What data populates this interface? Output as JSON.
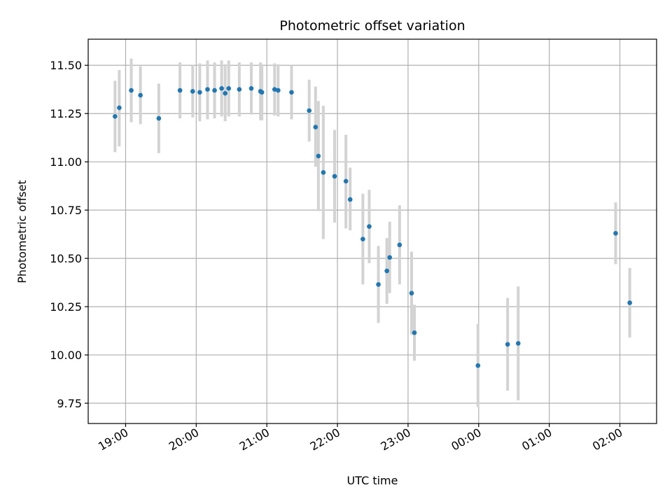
{
  "chart_data": {
    "type": "scatter",
    "title": "Photometric offset variation",
    "xlabel": "UTC time",
    "ylabel": "Photometric offset",
    "grid": true,
    "colors": {
      "marker": "#1f77b4",
      "errorbar": "#d3d3d3",
      "grid": "#b0b0b0"
    },
    "x_unit": "hours since 00:00 of the first night",
    "xlim": [
      18.47,
      26.52
    ],
    "ylim": [
      9.645,
      11.635
    ],
    "x_ticks": [
      {
        "value": 19,
        "label": "19:00"
      },
      {
        "value": 20,
        "label": "20:00"
      },
      {
        "value": 21,
        "label": "21:00"
      },
      {
        "value": 22,
        "label": "22:00"
      },
      {
        "value": 23,
        "label": "23:00"
      },
      {
        "value": 24,
        "label": "00:00"
      },
      {
        "value": 25,
        "label": "01:00"
      },
      {
        "value": 26,
        "label": "02:00"
      }
    ],
    "y_ticks": [
      {
        "value": 9.75,
        "label": "9.75"
      },
      {
        "value": 10.0,
        "label": "10.00"
      },
      {
        "value": 10.25,
        "label": "10.25"
      },
      {
        "value": 10.5,
        "label": "10.50"
      },
      {
        "value": 10.75,
        "label": "10.75"
      },
      {
        "value": 11.0,
        "label": "11.00"
      },
      {
        "value": 11.25,
        "label": "11.25"
      },
      {
        "value": 11.5,
        "label": "11.50"
      }
    ],
    "points": [
      {
        "x": 18.85,
        "y": 11.235,
        "ylo": 11.05,
        "yhi": 11.42
      },
      {
        "x": 18.91,
        "y": 11.28,
        "ylo": 11.08,
        "yhi": 11.475
      },
      {
        "x": 19.08,
        "y": 11.37,
        "ylo": 11.205,
        "yhi": 11.535
      },
      {
        "x": 19.21,
        "y": 11.345,
        "ylo": 11.195,
        "yhi": 11.495
      },
      {
        "x": 19.47,
        "y": 11.225,
        "ylo": 11.045,
        "yhi": 11.405
      },
      {
        "x": 19.77,
        "y": 11.37,
        "ylo": 11.225,
        "yhi": 11.515
      },
      {
        "x": 19.95,
        "y": 11.365,
        "ylo": 11.23,
        "yhi": 11.5
      },
      {
        "x": 20.05,
        "y": 11.36,
        "ylo": 11.21,
        "yhi": 11.51
      },
      {
        "x": 20.16,
        "y": 11.375,
        "ylo": 11.22,
        "yhi": 11.525
      },
      {
        "x": 20.26,
        "y": 11.37,
        "ylo": 11.225,
        "yhi": 11.515
      },
      {
        "x": 20.36,
        "y": 11.38,
        "ylo": 11.235,
        "yhi": 11.525
      },
      {
        "x": 20.41,
        "y": 11.355,
        "ylo": 11.21,
        "yhi": 11.505
      },
      {
        "x": 20.46,
        "y": 11.38,
        "ylo": 11.235,
        "yhi": 11.525
      },
      {
        "x": 20.61,
        "y": 11.375,
        "ylo": 11.235,
        "yhi": 11.515
      },
      {
        "x": 20.78,
        "y": 11.38,
        "ylo": 11.245,
        "yhi": 11.515
      },
      {
        "x": 20.91,
        "y": 11.365,
        "ylo": 11.215,
        "yhi": 11.515
      },
      {
        "x": 20.93,
        "y": 11.36,
        "ylo": 11.215,
        "yhi": 11.505
      },
      {
        "x": 21.11,
        "y": 11.375,
        "ylo": 11.24,
        "yhi": 11.51
      },
      {
        "x": 21.16,
        "y": 11.37,
        "ylo": 11.235,
        "yhi": 11.505
      },
      {
        "x": 21.35,
        "y": 11.36,
        "ylo": 11.22,
        "yhi": 11.5
      },
      {
        "x": 21.6,
        "y": 11.265,
        "ylo": 11.105,
        "yhi": 11.425
      },
      {
        "x": 21.69,
        "y": 11.18,
        "ylo": 10.975,
        "yhi": 11.39
      },
      {
        "x": 21.73,
        "y": 11.03,
        "ylo": 10.745,
        "yhi": 11.315
      },
      {
        "x": 21.8,
        "y": 10.945,
        "ylo": 10.6,
        "yhi": 11.29
      },
      {
        "x": 21.96,
        "y": 10.925,
        "ylo": 10.685,
        "yhi": 11.165
      },
      {
        "x": 22.12,
        "y": 10.9,
        "ylo": 10.655,
        "yhi": 11.14
      },
      {
        "x": 22.18,
        "y": 10.805,
        "ylo": 10.645,
        "yhi": 10.97
      },
      {
        "x": 22.36,
        "y": 10.6,
        "ylo": 10.365,
        "yhi": 10.835
      },
      {
        "x": 22.45,
        "y": 10.665,
        "ylo": 10.475,
        "yhi": 10.855
      },
      {
        "x": 22.58,
        "y": 10.365,
        "ylo": 10.165,
        "yhi": 10.565
      },
      {
        "x": 22.7,
        "y": 10.435,
        "ylo": 10.265,
        "yhi": 10.605
      },
      {
        "x": 22.74,
        "y": 10.505,
        "ylo": 10.32,
        "yhi": 10.69
      },
      {
        "x": 22.88,
        "y": 10.57,
        "ylo": 10.365,
        "yhi": 10.775
      },
      {
        "x": 23.05,
        "y": 10.32,
        "ylo": 10.105,
        "yhi": 10.535
      },
      {
        "x": 23.09,
        "y": 10.115,
        "ylo": 9.97,
        "yhi": 10.26
      },
      {
        "x": 23.99,
        "y": 9.945,
        "ylo": 9.73,
        "yhi": 10.16
      },
      {
        "x": 24.41,
        "y": 10.055,
        "ylo": 9.815,
        "yhi": 10.295
      },
      {
        "x": 24.56,
        "y": 10.06,
        "ylo": 9.765,
        "yhi": 10.355
      },
      {
        "x": 25.94,
        "y": 10.63,
        "ylo": 10.47,
        "yhi": 10.79
      },
      {
        "x": 26.14,
        "y": 10.27,
        "ylo": 10.09,
        "yhi": 10.45
      }
    ]
  }
}
